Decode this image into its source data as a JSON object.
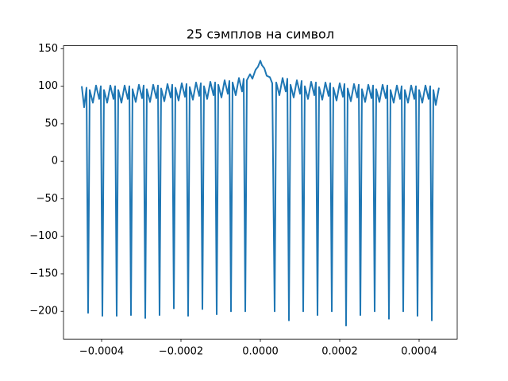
{
  "chart_data": {
    "type": "line",
    "title": "25 сэмплов на символ",
    "color": "#1f77b4",
    "grid": false,
    "xlim": [
      -0.000496,
      0.000496
    ],
    "ylim": [
      -237,
      154
    ],
    "xticks": [
      {
        "value": -0.0004,
        "label": "−0.0004"
      },
      {
        "value": -0.0002,
        "label": "−0.0002"
      },
      {
        "value": 0,
        "label": "0.0000"
      },
      {
        "value": 0.0002,
        "label": "0.0002"
      },
      {
        "value": 0.0004,
        "label": "0.0004"
      }
    ],
    "yticks": [
      150,
      100,
      50,
      0,
      {
        "value": -50,
        "label": "−50"
      },
      {
        "value": -100,
        "label": "−100"
      },
      {
        "value": -150,
        "label": "−150"
      },
      {
        "value": -200,
        "label": "−200"
      }
    ],
    "x": [
      -0.00045,
      -0.000444,
      -0.000438,
      -0.000434,
      -0.00043,
      -0.000422,
      -0.000414,
      -0.000406,
      -0.000402,
      -0.000398,
      -0.000394,
      -0.000386,
      -0.000378,
      -0.00037,
      -0.000366,
      -0.000362,
      -0.000358,
      -0.00035,
      -0.000342,
      -0.000334,
      -0.00033,
      -0.000326,
      -0.000322,
      -0.000314,
      -0.000306,
      -0.000298,
      -0.000294,
      -0.00029,
      -0.000286,
      -0.000278,
      -0.00027,
      -0.000262,
      -0.000258,
      -0.000254,
      -0.00025,
      -0.000242,
      -0.000234,
      -0.000226,
      -0.000222,
      -0.000218,
      -0.000214,
      -0.000206,
      -0.000198,
      -0.00019,
      -0.000186,
      -0.000182,
      -0.000178,
      -0.00017,
      -0.000162,
      -0.000154,
      -0.00015,
      -0.000146,
      -0.000142,
      -0.000134,
      -0.000126,
      -0.000118,
      -0.000114,
      -0.00011,
      -0.000106,
      -9.8e-05,
      -9e-05,
      -8.2e-05,
      -7.8e-05,
      -7.4e-05,
      -7e-05,
      -6.2e-05,
      -5.4e-05,
      -4.6e-05,
      -4.2e-05,
      -3.8e-05,
      -3.4e-05,
      -2.6e-05,
      -2e-05,
      -1.2e-05,
      -6e-06,
      0,
      4e-06,
      1e-05,
      1.6e-05,
      2.4e-05,
      3e-05,
      3.6e-05,
      4e-05,
      4.8e-05,
      5.6e-05,
      6.4e-05,
      6.8e-05,
      7.2e-05,
      7.6e-05,
      8.4e-05,
      9.2e-05,
      0.0001,
      0.000104,
      0.000108,
      0.000112,
      0.00012,
      0.000128,
      0.000136,
      0.00014,
      0.000144,
      0.000148,
      0.000156,
      0.000164,
      0.000172,
      0.000176,
      0.00018,
      0.000184,
      0.000192,
      0.0002,
      0.000208,
      0.000212,
      0.000216,
      0.00022,
      0.000228,
      0.000236,
      0.000244,
      0.000248,
      0.000252,
      0.000256,
      0.000264,
      0.000272,
      0.00028,
      0.000284,
      0.000288,
      0.000292,
      0.0003,
      0.000308,
      0.000316,
      0.00032,
      0.000324,
      0.000328,
      0.000336,
      0.000344,
      0.000352,
      0.000356,
      0.00036,
      0.000364,
      0.000372,
      0.00038,
      0.000388,
      0.000392,
      0.000396,
      0.0004,
      0.000408,
      0.000416,
      0.000424,
      0.000428,
      0.000432,
      0.000436,
      0.000442,
      0.00045
    ],
    "values": [
      100,
      72,
      98,
      -202,
      95,
      78,
      101,
      83,
      100,
      -206,
      95,
      78,
      101,
      83,
      100,
      -206,
      95,
      78,
      101,
      83,
      100,
      -205,
      96,
      79,
      102,
      84,
      101,
      -209,
      96,
      79,
      102,
      84,
      101,
      -205,
      97,
      80,
      103,
      85,
      102,
      -196,
      98,
      81,
      104,
      86,
      103,
      -206,
      99,
      82,
      105,
      87,
      104,
      -197,
      100,
      83,
      106,
      88,
      105,
      -204,
      102,
      85,
      108,
      90,
      107,
      -200,
      105,
      88,
      111,
      93,
      110,
      -200,
      108,
      116,
      110,
      122,
      126,
      134,
      128,
      124,
      114,
      112,
      104,
      -200,
      105,
      88,
      111,
      93,
      110,
      -212,
      102,
      85,
      108,
      90,
      107,
      -200,
      100,
      83,
      106,
      88,
      105,
      -205,
      99,
      82,
      105,
      87,
      104,
      -200,
      98,
      81,
      104,
      86,
      103,
      -219,
      97,
      80,
      103,
      85,
      102,
      -205,
      96,
      79,
      102,
      84,
      101,
      -200,
      96,
      79,
      102,
      84,
      101,
      -210,
      95,
      78,
      101,
      83,
      100,
      -200,
      95,
      78,
      101,
      83,
      100,
      -206,
      95,
      78,
      101,
      83,
      100,
      -212,
      95,
      75,
      98
    ]
  }
}
